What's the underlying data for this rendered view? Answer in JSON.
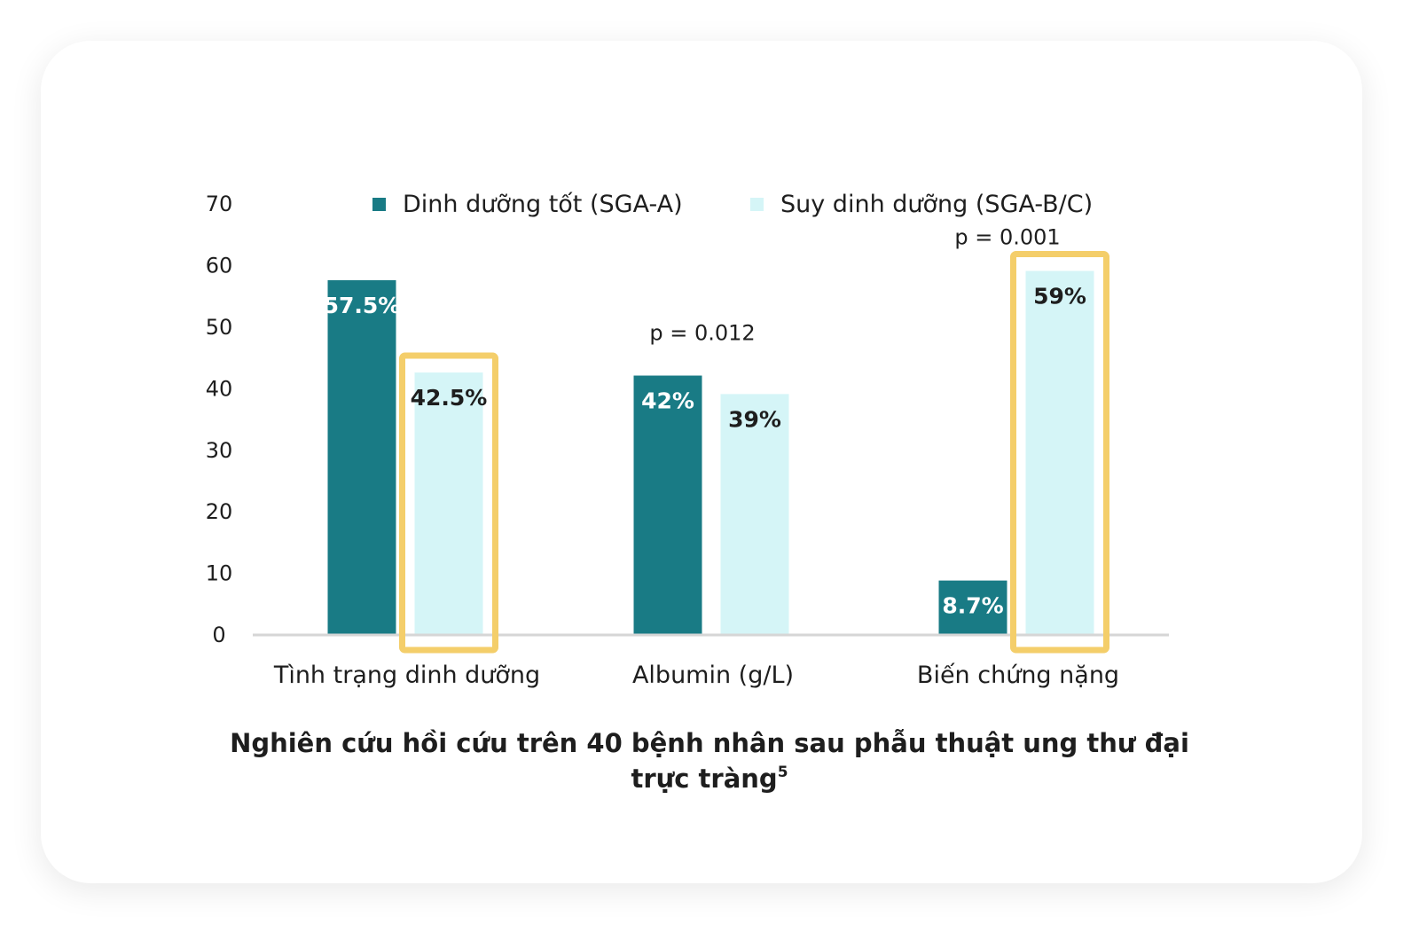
{
  "chart_data": {
    "type": "bar",
    "categories": [
      "Tình trạng dinh dưỡng",
      "Albumin (g/L)",
      "Biến chứng nặng"
    ],
    "series": [
      {
        "name": "Dinh dưỡng tốt (SGA-A)",
        "values": [
          57.5,
          42,
          8.7
        ],
        "labels": [
          "57.5%",
          "42%",
          "8.7%"
        ],
        "color": "#197b85"
      },
      {
        "name": "Suy dinh dưỡng (SGA-B/C)",
        "values": [
          42.5,
          39,
          59
        ],
        "labels": [
          "42.5%",
          "39%",
          "59%"
        ],
        "color": "#d5f5f7"
      }
    ],
    "yticks": [
      "0",
      "10",
      "20",
      "30",
      "40",
      "50",
      "60",
      "70"
    ],
    "ylim": [
      0,
      70
    ],
    "annotations": [
      {
        "category_index": 1,
        "text": "p = 0.012"
      },
      {
        "category_index": 2,
        "text": "p = 0.001"
      }
    ],
    "highlighted_bars": [
      {
        "category_index": 0,
        "series_index": 1
      },
      {
        "category_index": 2,
        "series_index": 1
      }
    ],
    "highlight_color": "#f4ce6a",
    "legend_position": "top",
    "grid": false
  },
  "caption": {
    "text": "Nghiên cứu hồi cứu trên 40 bệnh nhân sau phẫu thuật ung thư đại trực tràng",
    "superscript": "5"
  }
}
